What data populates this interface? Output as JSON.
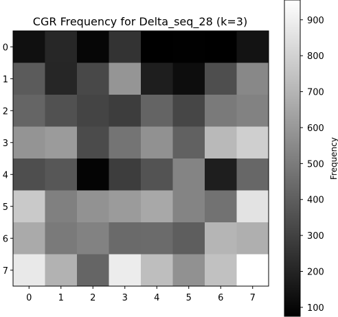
{
  "chart_data": {
    "type": "heatmap",
    "title": "CGR Frequency for Delta_seq_28 (k=3)",
    "xlabel": "",
    "ylabel": "",
    "x_ticks": [
      "0",
      "1",
      "2",
      "3",
      "4",
      "5",
      "6",
      "7"
    ],
    "y_ticks": [
      "0",
      "1",
      "2",
      "3",
      "4",
      "5",
      "6",
      "7"
    ],
    "colorbar": {
      "label": "Frequency",
      "min": 75,
      "max": 955,
      "ticks": [
        100,
        200,
        300,
        400,
        500,
        600,
        700,
        800,
        900
      ],
      "colormap": "gray"
    },
    "values": [
      [
        130,
        210,
        95,
        250,
        75,
        80,
        75,
        140
      ],
      [
        390,
        205,
        325,
        590,
        180,
        120,
        345,
        545
      ],
      [
        425,
        355,
        310,
        285,
        420,
        315,
        495,
        525
      ],
      [
        585,
        610,
        335,
        475,
        575,
        410,
        715,
        790
      ],
      [
        345,
        375,
        90,
        285,
        360,
        530,
        180,
        430
      ],
      [
        770,
        515,
        580,
        610,
        655,
        530,
        470,
        860
      ],
      [
        660,
        495,
        525,
        440,
        445,
        400,
        700,
        680
      ],
      [
        880,
        690,
        425,
        890,
        730,
        575,
        740,
        955
      ]
    ]
  }
}
